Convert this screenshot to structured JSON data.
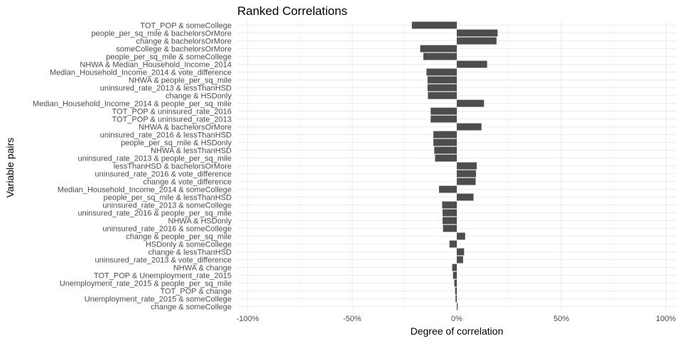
{
  "chart_data": {
    "type": "bar",
    "orientation": "horizontal",
    "title": "Ranked Correlations",
    "xlabel": "Degree of correlation",
    "ylabel": "Variable pairs",
    "xlim": [
      -1.05,
      1.05
    ],
    "x_ticks": [
      -1,
      -0.5,
      0,
      0.5,
      1
    ],
    "x_tick_labels": [
      "-100%",
      "-50%",
      "0%",
      "50%",
      "100%"
    ],
    "grid": true,
    "legend": "none",
    "bar_color": "#4d4d4d",
    "categories": [
      "TOT_POP & someCollege",
      "people_per_sq_mile & bachelorsOrMore",
      "change & bachelorsOrMore",
      "someCollege & bachelorsOrMore",
      "people_per_sq_mile & someCollege",
      "NHWA & Median_Household_Income_2014",
      "Median_Household_Income_2014 & vote_difference",
      "NHWA & people_per_sq_mile",
      "uninsured_rate_2013 & lessThanHSD",
      "change & HSDonly",
      "Median_Household_Income_2014 & people_per_sq_mile",
      "TOT_POP & uninsured_rate_2016",
      "TOT_POP & uninsured_rate_2013",
      "NHWA & bachelorsOrMore",
      "uninsured_rate_2016 & lessThanHSD",
      "people_per_sq_mile & HSDonly",
      "NHWA & lessThanHSD",
      "uninsured_rate_2013 & people_per_sq_mile",
      "lessThanHSD & bachelorsOrMore",
      "uninsured_rate_2016 & vote_difference",
      "change & vote_difference",
      "Median_Household_Income_2014 & someCollege",
      "people_per_sq_mile & lessThanHSD",
      "uninsured_rate_2013 & someCollege",
      "uninsured_rate_2016 & people_per_sq_mile",
      "NHWA & HSDonly",
      "uninsured_rate_2016 & someCollege",
      "change & people_per_sq_mile",
      "HSDonly & someCollege",
      "change & lessThanHSD",
      "uninsured_rate_2013 & vote_difference",
      "NHWA & change",
      "TOT_POP & Unemployment_rate_2015",
      "Unemployment_rate_2015 & people_per_sq_mile",
      "TOT_POP & change",
      "Unemployment_rate_2015 & someCollege",
      "change & someCollege"
    ],
    "values": [
      -0.215,
      0.195,
      0.19,
      -0.175,
      -0.16,
      0.145,
      -0.145,
      -0.14,
      -0.14,
      -0.138,
      0.13,
      -0.125,
      -0.125,
      0.118,
      -0.112,
      -0.112,
      -0.108,
      -0.104,
      0.095,
      0.092,
      0.09,
      -0.085,
      0.08,
      -0.07,
      -0.068,
      -0.068,
      -0.066,
      0.04,
      -0.035,
      0.035,
      0.03,
      -0.022,
      -0.018,
      -0.012,
      -0.008,
      -0.006,
      0.004
    ]
  }
}
